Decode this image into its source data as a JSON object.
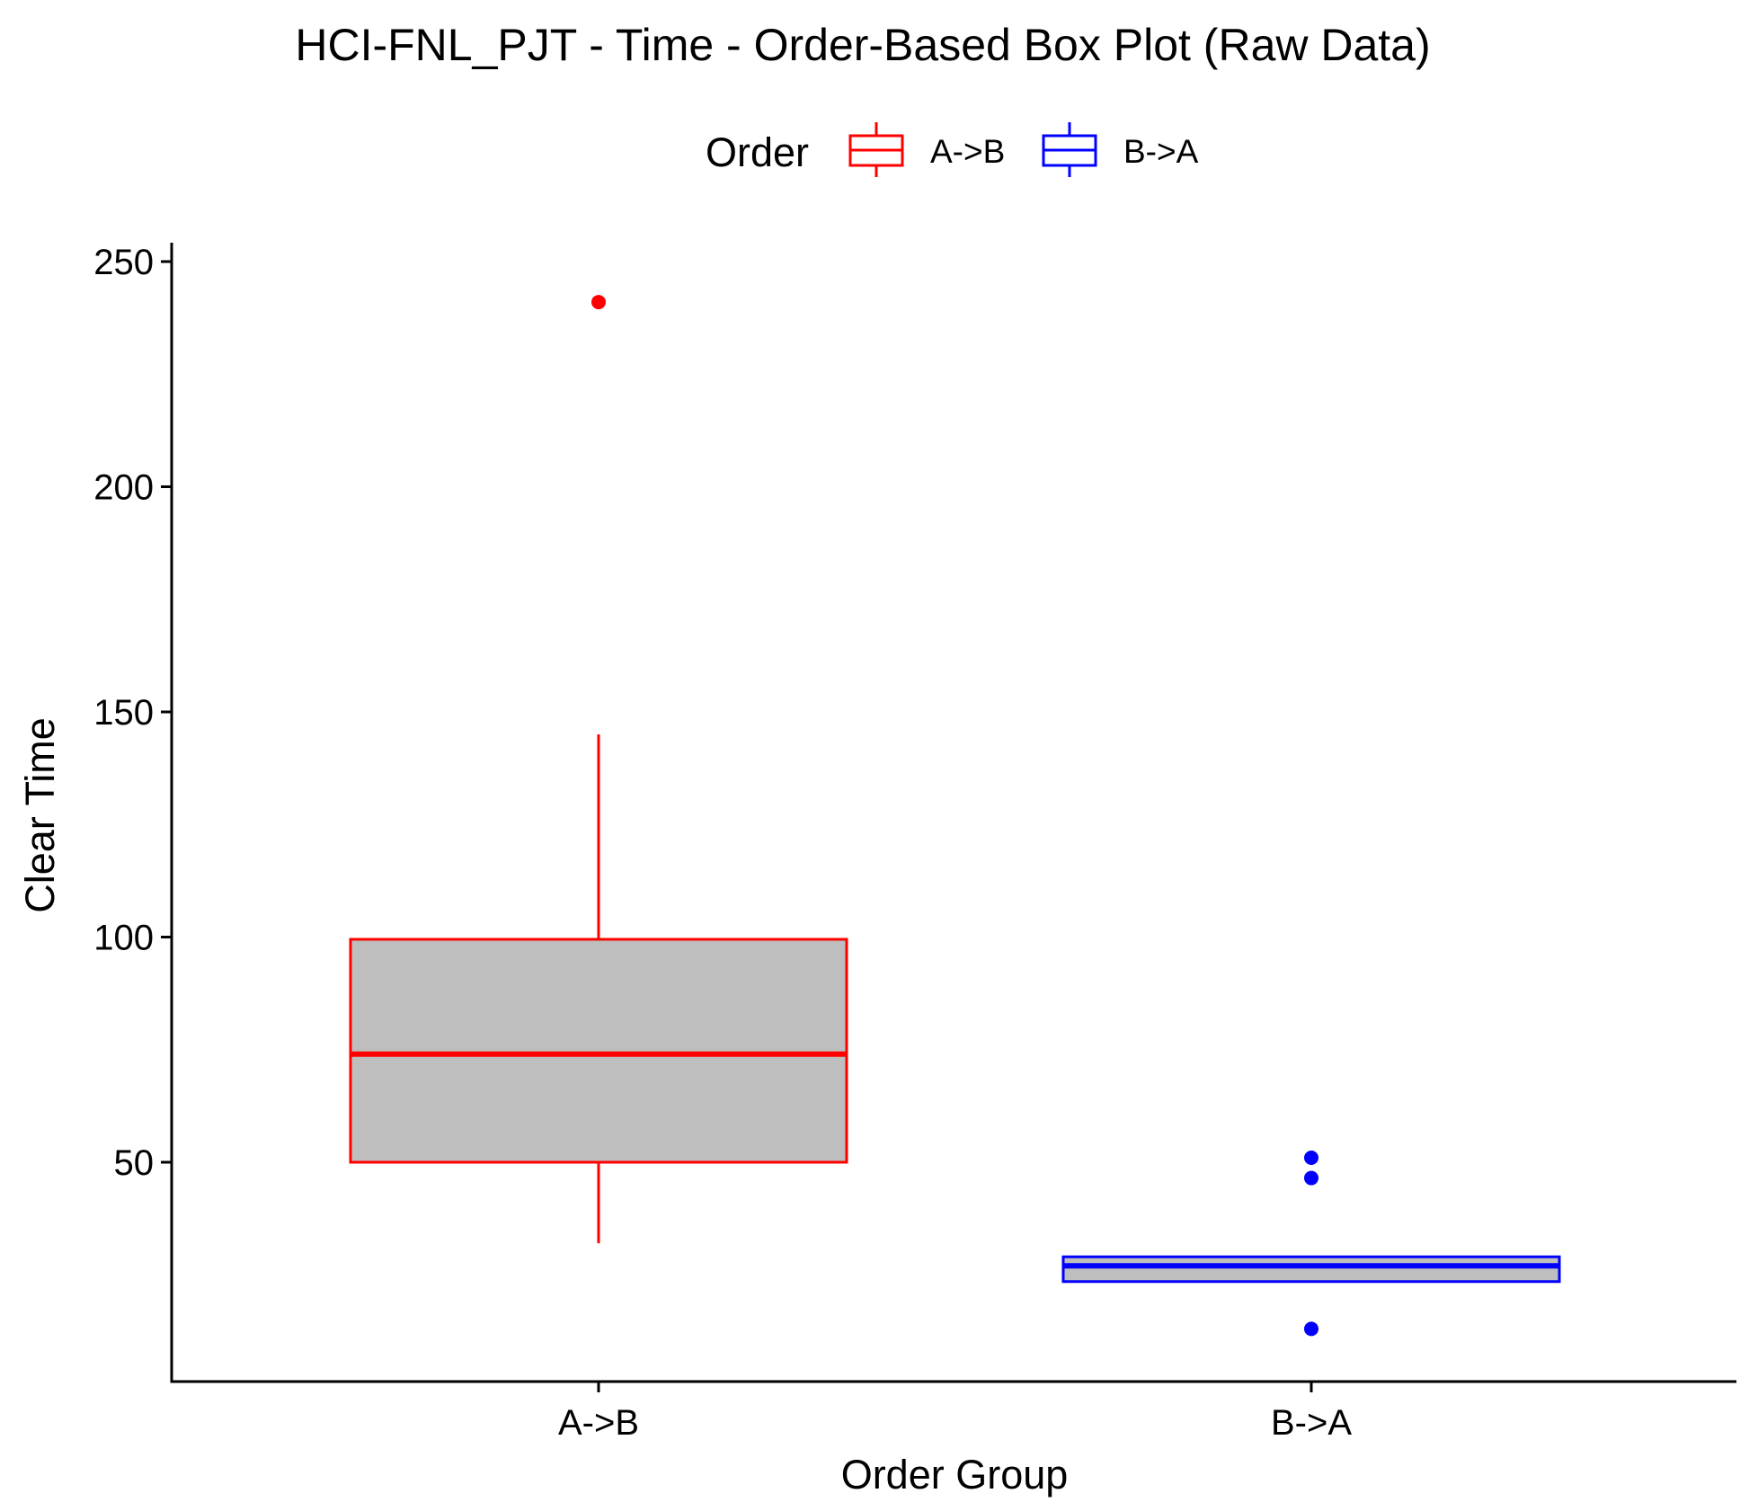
{
  "chart_data": {
    "type": "boxplot",
    "title": "HCI-FNL_PJT - Time - Order-Based Box Plot (Raw Data)",
    "xlabel": "Order Group",
    "ylabel": "Clear Time",
    "categories": [
      "A->B",
      "B->A"
    ],
    "ylim": [
      0,
      250
    ],
    "yticks": [
      50,
      100,
      150,
      200,
      250
    ],
    "grid": false,
    "legend": {
      "title": "Order",
      "position": "top",
      "entries": [
        "A->B",
        "B->A"
      ]
    },
    "series": [
      {
        "name": "A->B",
        "color": "#ff0000",
        "fill": "#bebebe",
        "whisker_low": 32,
        "q1": 50,
        "median": 74,
        "q3": 99.5,
        "whisker_high": 145,
        "outliers": [
          241
        ]
      },
      {
        "name": "B->A",
        "color": "#0000ff",
        "fill": "#bebebe",
        "whisker_low": 23.5,
        "q1": 23.5,
        "median": 27,
        "q3": 29,
        "whisker_high": 29,
        "outliers": [
          51,
          46.5,
          13
        ]
      }
    ]
  }
}
